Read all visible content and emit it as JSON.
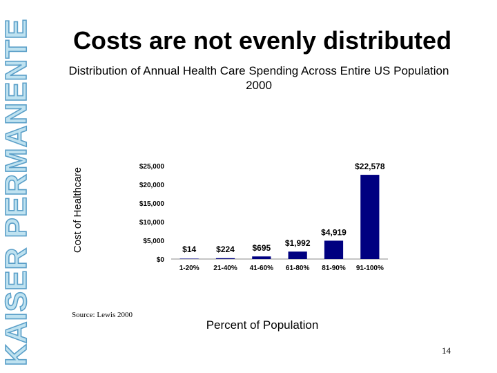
{
  "brand": {
    "text": "KAISER PERMANENTE",
    "color": "#5a9fc8"
  },
  "slide": {
    "title": "Costs are not evenly distributed",
    "subtitle_line1": "Distribution of Annual Health Care Spending Across Entire US Population",
    "subtitle_line2": "2000",
    "source": "Source:  Lewis 2000",
    "page_number": "14"
  },
  "chart_data": {
    "type": "bar",
    "title": "Distribution of Annual Health Care Spending Across Entire US Population 2000",
    "xlabel": "Percent of Population",
    "ylabel": "Cost of Healthcare",
    "categories": [
      "1-20%",
      "21-40%",
      "41-60%",
      "61-80%",
      "81-90%",
      "91-100%"
    ],
    "values": [
      14,
      224,
      695,
      1992,
      4919,
      22578
    ],
    "data_labels": [
      "$14",
      "$224",
      "$695",
      "$1,992",
      "$4,919",
      "$22,578"
    ],
    "ylim": [
      0,
      25000
    ],
    "yticks": [
      0,
      5000,
      10000,
      15000,
      20000,
      25000
    ],
    "ytick_labels": [
      "$0",
      "$5,000",
      "$10,000",
      "$15,000",
      "$20,000",
      "$25,000"
    ],
    "bar_color": "#000080",
    "grid": false
  }
}
